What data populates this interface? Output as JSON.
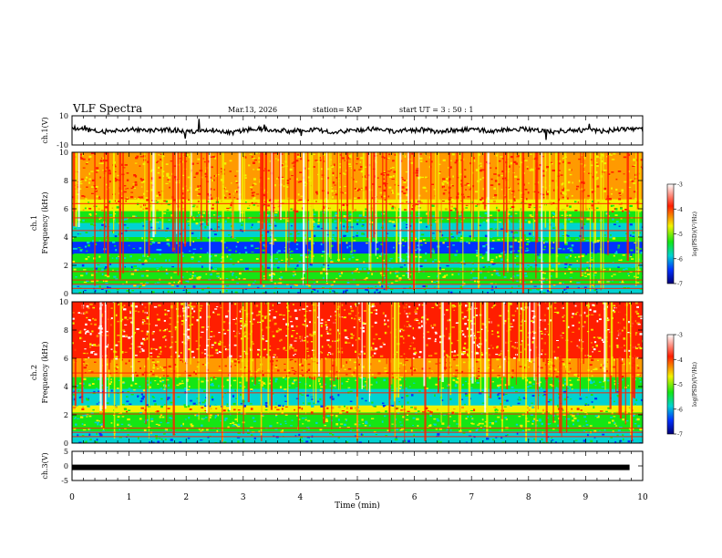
{
  "header": {
    "title": "VLF Spectra",
    "date": "Mar.13, 2026",
    "station": "station= KAP",
    "start_ut": "start UT =  3 : 50 : 1"
  },
  "chart_data": [
    {
      "type": "line",
      "panel": "ch1-waveform",
      "ylabel": "ch.1(V)",
      "ylim": [
        -10,
        10
      ],
      "yticks": [
        "10",
        "-10"
      ],
      "xlim": [
        0,
        10
      ],
      "description_of_series": "black amplitude trace hovering near 0 V with spikes",
      "series": [
        {
          "values": [
            3,
            1,
            -2,
            0,
            2,
            -1,
            1,
            0,
            -2,
            1,
            0,
            -3,
            1,
            2,
            0,
            -1,
            1,
            0,
            -2,
            0,
            1,
            2,
            -1,
            0,
            1,
            -2,
            0,
            1,
            0,
            -1,
            1,
            2,
            0,
            -2,
            1,
            0,
            -1,
            0,
            2,
            1
          ]
        }
      ]
    },
    {
      "type": "heatmap",
      "panel": "ch1-spectrogram",
      "ylabel": "ch.1 Frequency (kHz)",
      "ylim": [
        0,
        10
      ],
      "yticks": [
        "0",
        "2",
        "4",
        "6",
        "8",
        "10"
      ],
      "xlim": [
        0,
        10
      ],
      "colorbar": {
        "label": "log(PSD)(V²/Hz)",
        "range": [
          -7,
          -3
        ],
        "ticks": [
          "-3",
          "-4",
          "-5",
          "-6",
          "-7"
        ]
      }
    },
    {
      "type": "heatmap",
      "panel": "ch2-spectrogram",
      "ylabel": "ch.2 Frequency (kHz)",
      "ylim": [
        0,
        10
      ],
      "yticks": [
        "0",
        "2",
        "4",
        "6",
        "8",
        "10"
      ],
      "xlim": [
        0,
        10
      ],
      "colorbar": {
        "label": "log(PSD)(V²/Hz)",
        "range": [
          -7,
          -3
        ],
        "ticks": [
          "-3",
          "-4",
          "-5",
          "-6",
          "-7"
        ]
      }
    },
    {
      "type": "line",
      "panel": "ch3-waveform",
      "ylabel": "ch.3(V)",
      "ylim": [
        -5,
        5
      ],
      "yticks": [
        "5",
        "0",
        "-5"
      ],
      "xlim": [
        0,
        10
      ],
      "series": [
        {
          "values": [
            -0.5,
            -0.5,
            -0.5,
            -0.5,
            -0.5,
            -0.5,
            -0.5,
            -0.5,
            -0.5,
            -0.5,
            -0.5
          ]
        }
      ]
    }
  ],
  "xaxis": {
    "label": "Time (min)",
    "ticks": [
      "0",
      "1",
      "2",
      "3",
      "4",
      "5",
      "6",
      "7",
      "8",
      "9",
      "10"
    ]
  },
  "colors": {
    "red": "#ff1e00",
    "orange": "#ff9a00",
    "yellow": "#f2f200",
    "green": "#14e614",
    "cyan": "#00d2d2",
    "blue": "#0032ff",
    "navy": "#000078"
  }
}
